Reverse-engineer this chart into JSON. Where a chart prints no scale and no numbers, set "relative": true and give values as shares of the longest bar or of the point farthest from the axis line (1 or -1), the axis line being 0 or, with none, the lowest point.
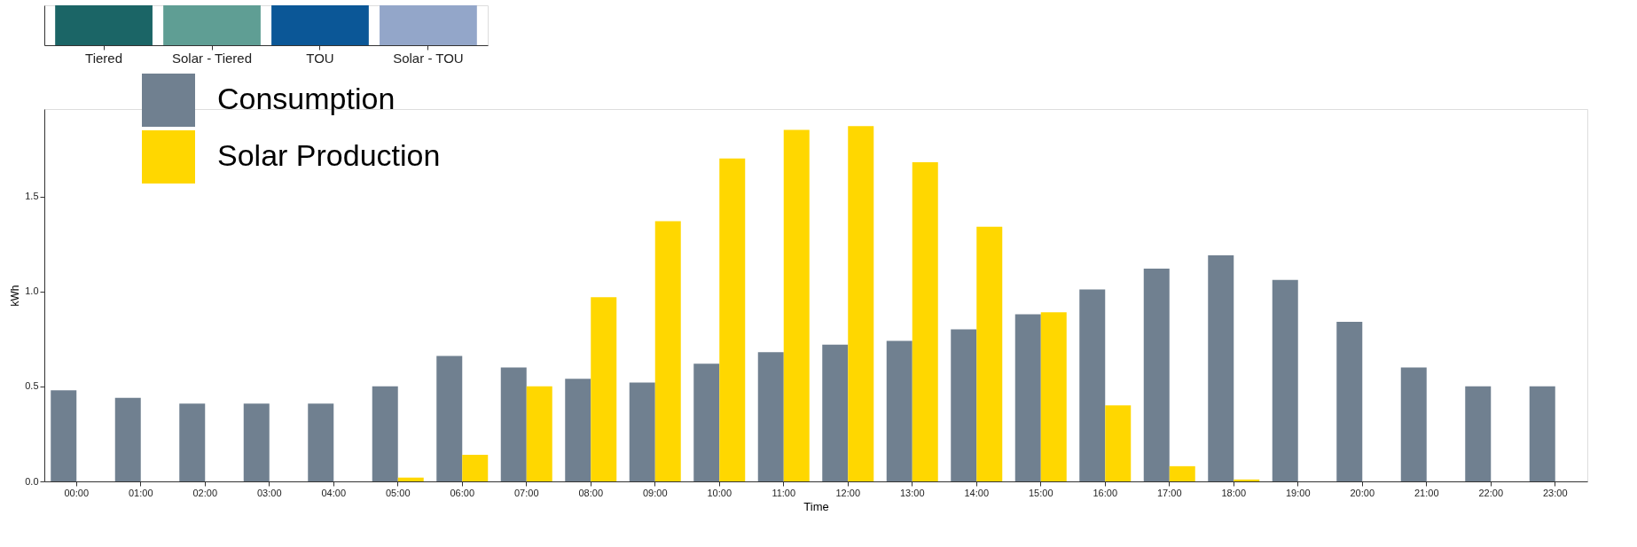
{
  "chart_data": [
    {
      "type": "bar",
      "categories": [
        "Tiered",
        "Solar - Tiered",
        "TOU",
        "Solar - TOU"
      ],
      "values": [
        1,
        1,
        1,
        1
      ],
      "colors": [
        "#1b6566",
        "#5f9e94",
        "#0b5797",
        "#93a6c9"
      ],
      "relative": true
    },
    {
      "type": "bar",
      "xlabel": "Time",
      "ylabel": "kWh",
      "categories": [
        "00:00",
        "01:00",
        "02:00",
        "03:00",
        "04:00",
        "05:00",
        "06:00",
        "07:00",
        "08:00",
        "09:00",
        "10:00",
        "11:00",
        "12:00",
        "13:00",
        "14:00",
        "15:00",
        "16:00",
        "17:00",
        "18:00",
        "19:00",
        "20:00",
        "21:00",
        "22:00",
        "23:00"
      ],
      "series": [
        {
          "name": "Consumption",
          "color": "#708090",
          "values": [
            0.48,
            0.44,
            0.41,
            0.41,
            0.41,
            0.5,
            0.66,
            0.6,
            0.54,
            0.52,
            0.62,
            0.68,
            0.72,
            0.74,
            0.8,
            0.88,
            1.01,
            1.12,
            1.19,
            1.06,
            0.84,
            0.6,
            0.5,
            0.5
          ]
        },
        {
          "name": "Solar Production",
          "color": "#ffd700",
          "values": [
            0,
            0,
            0,
            0,
            0,
            0.02,
            0.14,
            0.5,
            0.97,
            1.37,
            1.7,
            1.85,
            1.87,
            1.68,
            1.34,
            0.89,
            0.4,
            0.08,
            0.01,
            0,
            0,
            0,
            0,
            0
          ]
        }
      ],
      "ylim": [
        0,
        1.96
      ],
      "yticks": [
        {
          "value": 0,
          "label": "0.0"
        },
        0.5,
        {
          "value": 1,
          "label": "1.0"
        },
        1.5
      ],
      "legend": "top left",
      "grid": false
    }
  ]
}
